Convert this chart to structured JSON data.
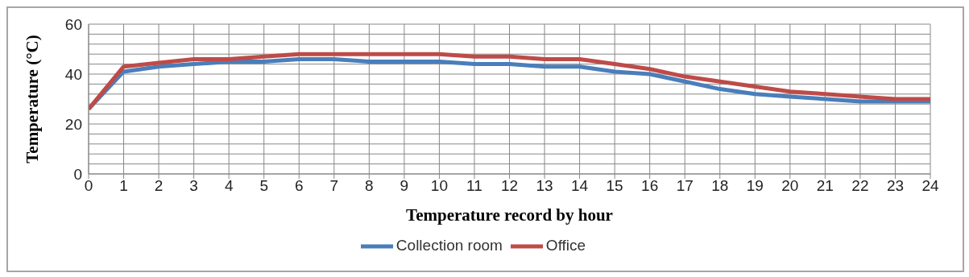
{
  "chart_data": {
    "type": "line",
    "xlabel": "Temperature record by hour",
    "ylabel": "Temperature (°C)",
    "x": [
      0,
      1,
      2,
      3,
      4,
      5,
      6,
      7,
      8,
      9,
      10,
      11,
      12,
      13,
      14,
      15,
      16,
      17,
      18,
      19,
      20,
      21,
      22,
      23,
      24
    ],
    "xlim": [
      0,
      24
    ],
    "xticks": [
      0,
      1,
      2,
      3,
      4,
      5,
      6,
      7,
      8,
      9,
      10,
      11,
      12,
      13,
      14,
      15,
      16,
      17,
      18,
      19,
      20,
      21,
      22,
      23,
      24
    ],
    "ylim": [
      0,
      60
    ],
    "yticks": [
      0,
      {
        "value": 4,
        "label": null
      },
      {
        "value": 8,
        "label": null
      },
      {
        "value": 12,
        "label": null
      },
      {
        "value": 16,
        "label": null
      },
      20,
      {
        "value": 24,
        "label": null
      },
      {
        "value": 28,
        "label": null
      },
      {
        "value": 32,
        "label": null
      },
      {
        "value": 36,
        "label": null
      },
      40,
      {
        "value": 44,
        "label": null
      },
      {
        "value": 48,
        "label": null
      },
      {
        "value": 52,
        "label": null
      },
      {
        "value": 56,
        "label": null
      },
      60
    ],
    "grid": true,
    "legend": "bottom",
    "marker": "none",
    "line_style": "solid",
    "series": [
      {
        "name": "Collection room",
        "color": "#4a7ebb",
        "values": [
          26,
          41,
          43,
          44,
          45,
          45,
          46,
          46,
          45,
          45,
          45,
          44,
          44,
          43,
          43,
          41,
          40,
          37,
          34,
          32,
          31,
          30,
          29,
          29,
          29
        ]
      },
      {
        "name": "Office",
        "color": "#be4b48",
        "values": [
          26,
          43,
          44.5,
          46,
          46,
          47,
          48,
          48,
          48,
          48,
          48,
          47,
          47,
          46,
          46,
          44,
          42,
          39,
          37,
          35,
          33,
          32,
          31,
          30,
          30
        ]
      }
    ]
  }
}
